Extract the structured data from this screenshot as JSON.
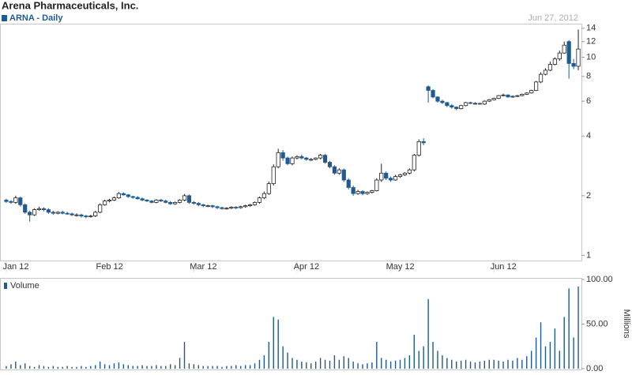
{
  "chart_data": {
    "type": "candlestick",
    "title": "Arena Pharmaceuticals, Inc.",
    "date_label": "Jun 27, 2012",
    "series_name": "ARNA - Daily",
    "up_color": "#ffffff",
    "down_color": "#1f5b92",
    "yscale": "log",
    "ylim": [
      0.95,
      14.5
    ],
    "yticks": [
      1,
      2,
      4,
      6,
      8,
      10,
      12,
      14
    ],
    "categories": [
      "Jan 12",
      null,
      null,
      null,
      null,
      null,
      null,
      null,
      null,
      null,
      null,
      null,
      null,
      null,
      null,
      null,
      null,
      null,
      null,
      null,
      "Feb 12",
      null,
      null,
      null,
      null,
      null,
      null,
      null,
      null,
      null,
      null,
      null,
      null,
      null,
      null,
      null,
      null,
      null,
      null,
      null,
      "Mar 12",
      null,
      null,
      null,
      null,
      null,
      null,
      null,
      null,
      null,
      null,
      null,
      null,
      null,
      null,
      null,
      null,
      null,
      null,
      null,
      null,
      null,
      "Apr 12",
      null,
      null,
      null,
      null,
      null,
      null,
      null,
      null,
      null,
      null,
      null,
      null,
      null,
      null,
      null,
      null,
      null,
      null,
      null,
      "May 12",
      null,
      null,
      null,
      null,
      null,
      null,
      null,
      null,
      null,
      null,
      null,
      null,
      null,
      null,
      null,
      null,
      null,
      null,
      null,
      null,
      null,
      "Jun 12",
      null,
      null,
      null,
      null,
      null,
      null,
      null,
      null,
      null,
      null,
      null,
      null,
      null,
      null,
      null,
      null,
      null,
      null
    ],
    "open": [
      1.9,
      1.87,
      1.85,
      1.95,
      1.8,
      1.65,
      1.6,
      1.7,
      1.72,
      1.7,
      1.65,
      1.63,
      1.65,
      1.63,
      1.62,
      1.6,
      1.6,
      1.58,
      1.57,
      1.58,
      1.65,
      1.8,
      1.88,
      1.9,
      1.95,
      2.05,
      2.02,
      1.98,
      1.96,
      1.93,
      1.9,
      1.88,
      1.85,
      1.9,
      1.88,
      1.85,
      1.82,
      1.85,
      1.9,
      2.0,
      1.85,
      1.83,
      1.8,
      1.78,
      1.78,
      1.76,
      1.74,
      1.72,
      1.73,
      1.75,
      1.74,
      1.76,
      1.78,
      1.8,
      1.85,
      1.95,
      2.05,
      2.3,
      2.8,
      3.3,
      3.1,
      2.9,
      3.1,
      3.15,
      3.1,
      3.05,
      3.05,
      3.1,
      3.2,
      2.95,
      2.8,
      2.6,
      2.7,
      2.4,
      2.2,
      2.05,
      2.1,
      2.05,
      2.08,
      2.12,
      2.4,
      2.6,
      2.45,
      2.4,
      2.5,
      2.55,
      2.6,
      2.7,
      3.2,
      3.75,
      7.1,
      6.8,
      6.3,
      6.0,
      5.9,
      5.7,
      5.6,
      5.5,
      5.7,
      5.9,
      5.85,
      5.85,
      5.8,
      6.0,
      6.1,
      6.2,
      6.4,
      6.45,
      6.3,
      6.35,
      6.4,
      6.5,
      6.6,
      6.8,
      7.5,
      8.2,
      8.6,
      9.2,
      9.8,
      10.5,
      12.0,
      9.3,
      9.0
    ],
    "high": [
      1.93,
      1.9,
      2.0,
      1.98,
      1.83,
      1.68,
      1.73,
      1.76,
      1.75,
      1.73,
      1.68,
      1.67,
      1.68,
      1.66,
      1.64,
      1.63,
      1.62,
      1.6,
      1.6,
      1.68,
      1.83,
      1.91,
      1.93,
      1.98,
      2.09,
      2.08,
      2.04,
      2.0,
      1.99,
      1.96,
      1.92,
      1.9,
      1.92,
      1.93,
      1.91,
      1.88,
      1.87,
      1.92,
      2.04,
      2.03,
      1.88,
      1.86,
      1.82,
      1.8,
      1.8,
      1.78,
      1.76,
      1.75,
      1.77,
      1.77,
      1.78,
      1.8,
      1.82,
      1.87,
      1.98,
      2.1,
      2.36,
      2.88,
      3.45,
      3.4,
      3.15,
      3.15,
      3.2,
      3.22,
      3.14,
      3.1,
      3.12,
      3.25,
      3.25,
      3.0,
      2.85,
      2.75,
      2.74,
      2.45,
      2.25,
      2.14,
      2.13,
      2.1,
      2.14,
      2.45,
      2.9,
      2.65,
      2.5,
      2.55,
      2.58,
      2.63,
      2.75,
      3.25,
      3.85,
      3.9,
      7.2,
      6.9,
      6.35,
      6.1,
      5.95,
      5.8,
      5.65,
      5.75,
      5.95,
      5.95,
      5.92,
      5.9,
      6.05,
      6.15,
      6.25,
      6.45,
      6.55,
      6.5,
      6.4,
      6.45,
      6.55,
      6.65,
      6.85,
      7.6,
      8.4,
      8.8,
      9.5,
      10.0,
      10.8,
      12.0,
      12.2,
      9.8,
      13.8
    ],
    "low": [
      1.84,
      1.82,
      1.82,
      1.76,
      1.62,
      1.48,
      1.58,
      1.68,
      1.67,
      1.62,
      1.6,
      1.61,
      1.61,
      1.6,
      1.58,
      1.57,
      1.55,
      1.54,
      1.55,
      1.56,
      1.63,
      1.78,
      1.85,
      1.88,
      1.93,
      2.0,
      1.95,
      1.93,
      1.91,
      1.88,
      1.86,
      1.83,
      1.83,
      1.86,
      1.83,
      1.8,
      1.8,
      1.83,
      1.88,
      1.82,
      1.8,
      1.77,
      1.75,
      1.75,
      1.73,
      1.71,
      1.7,
      1.7,
      1.71,
      1.71,
      1.72,
      1.74,
      1.76,
      1.78,
      1.82,
      1.92,
      2.02,
      2.25,
      2.75,
      3.0,
      2.85,
      2.85,
      3.05,
      3.05,
      3.0,
      3.0,
      3.02,
      3.05,
      2.9,
      2.75,
      2.55,
      2.55,
      2.35,
      2.15,
      2.0,
      2.02,
      2.01,
      2.02,
      2.05,
      2.1,
      2.35,
      2.4,
      2.35,
      2.38,
      2.46,
      2.52,
      2.56,
      2.65,
      3.15,
      3.6,
      5.9,
      6.2,
      5.9,
      5.8,
      5.6,
      5.5,
      5.4,
      5.45,
      5.65,
      5.8,
      5.78,
      5.75,
      5.75,
      5.95,
      6.05,
      6.15,
      6.35,
      6.25,
      6.25,
      6.3,
      6.35,
      6.45,
      6.55,
      6.75,
      7.4,
      8.1,
      8.5,
      9.1,
      9.6,
      10.4,
      7.8,
      8.7,
      8.6
    ],
    "close": [
      1.87,
      1.85,
      1.95,
      1.8,
      1.65,
      1.6,
      1.7,
      1.72,
      1.7,
      1.65,
      1.63,
      1.65,
      1.63,
      1.62,
      1.6,
      1.6,
      1.58,
      1.57,
      1.58,
      1.65,
      1.8,
      1.88,
      1.9,
      1.95,
      2.05,
      2.02,
      1.98,
      1.96,
      1.93,
      1.9,
      1.88,
      1.85,
      1.9,
      1.88,
      1.85,
      1.82,
      1.85,
      1.9,
      2.0,
      1.85,
      1.83,
      1.8,
      1.78,
      1.78,
      1.76,
      1.74,
      1.72,
      1.73,
      1.75,
      1.74,
      1.76,
      1.78,
      1.8,
      1.85,
      1.95,
      2.05,
      2.3,
      2.8,
      3.3,
      3.1,
      2.9,
      3.1,
      3.15,
      3.1,
      3.05,
      3.05,
      3.1,
      3.2,
      2.95,
      2.8,
      2.6,
      2.7,
      2.4,
      2.2,
      2.05,
      2.1,
      2.05,
      2.08,
      2.12,
      2.4,
      2.6,
      2.45,
      2.4,
      2.5,
      2.55,
      2.6,
      2.7,
      3.2,
      3.75,
      3.7,
      6.8,
      6.3,
      6.0,
      5.9,
      5.7,
      5.6,
      5.5,
      5.7,
      5.9,
      5.85,
      5.85,
      5.8,
      6.0,
      6.1,
      6.2,
      6.4,
      6.45,
      6.3,
      6.35,
      6.4,
      6.5,
      6.6,
      6.8,
      7.5,
      8.2,
      8.6,
      9.2,
      9.8,
      10.5,
      11.5,
      9.3,
      9.0,
      11.0
    ],
    "volume": {
      "name": "Volume",
      "axis_label": "Millions",
      "color": "#1f5b92",
      "ylim": [
        0,
        100
      ],
      "yticks": [
        {
          "value": 0,
          "label": "0.00"
        },
        {
          "value": 50,
          "label": "50.00"
        },
        {
          "value": 100,
          "label": "100.00"
        }
      ],
      "values": [
        3,
        5,
        8,
        4,
        6,
        3,
        2,
        4,
        3,
        2,
        3,
        2,
        2,
        3,
        2,
        2,
        3,
        2,
        3,
        4,
        8,
        5,
        4,
        6,
        7,
        5,
        4,
        3,
        3,
        4,
        3,
        3,
        4,
        3,
        3,
        5,
        4,
        12,
        30,
        6,
        5,
        4,
        3,
        3,
        3,
        3,
        2,
        3,
        3,
        4,
        3,
        4,
        4,
        6,
        10,
        15,
        30,
        58,
        55,
        25,
        18,
        12,
        10,
        8,
        7,
        6,
        8,
        12,
        10,
        9,
        15,
        10,
        14,
        12,
        8,
        6,
        5,
        6,
        7,
        30,
        12,
        10,
        8,
        9,
        10,
        12,
        15,
        38,
        20,
        25,
        78,
        30,
        20,
        15,
        12,
        10,
        8,
        9,
        10,
        8,
        7,
        8,
        9,
        10,
        10,
        9,
        8,
        10,
        9,
        12,
        10,
        14,
        20,
        35,
        52,
        25,
        30,
        45,
        20,
        58,
        90,
        35,
        92
      ]
    }
  }
}
